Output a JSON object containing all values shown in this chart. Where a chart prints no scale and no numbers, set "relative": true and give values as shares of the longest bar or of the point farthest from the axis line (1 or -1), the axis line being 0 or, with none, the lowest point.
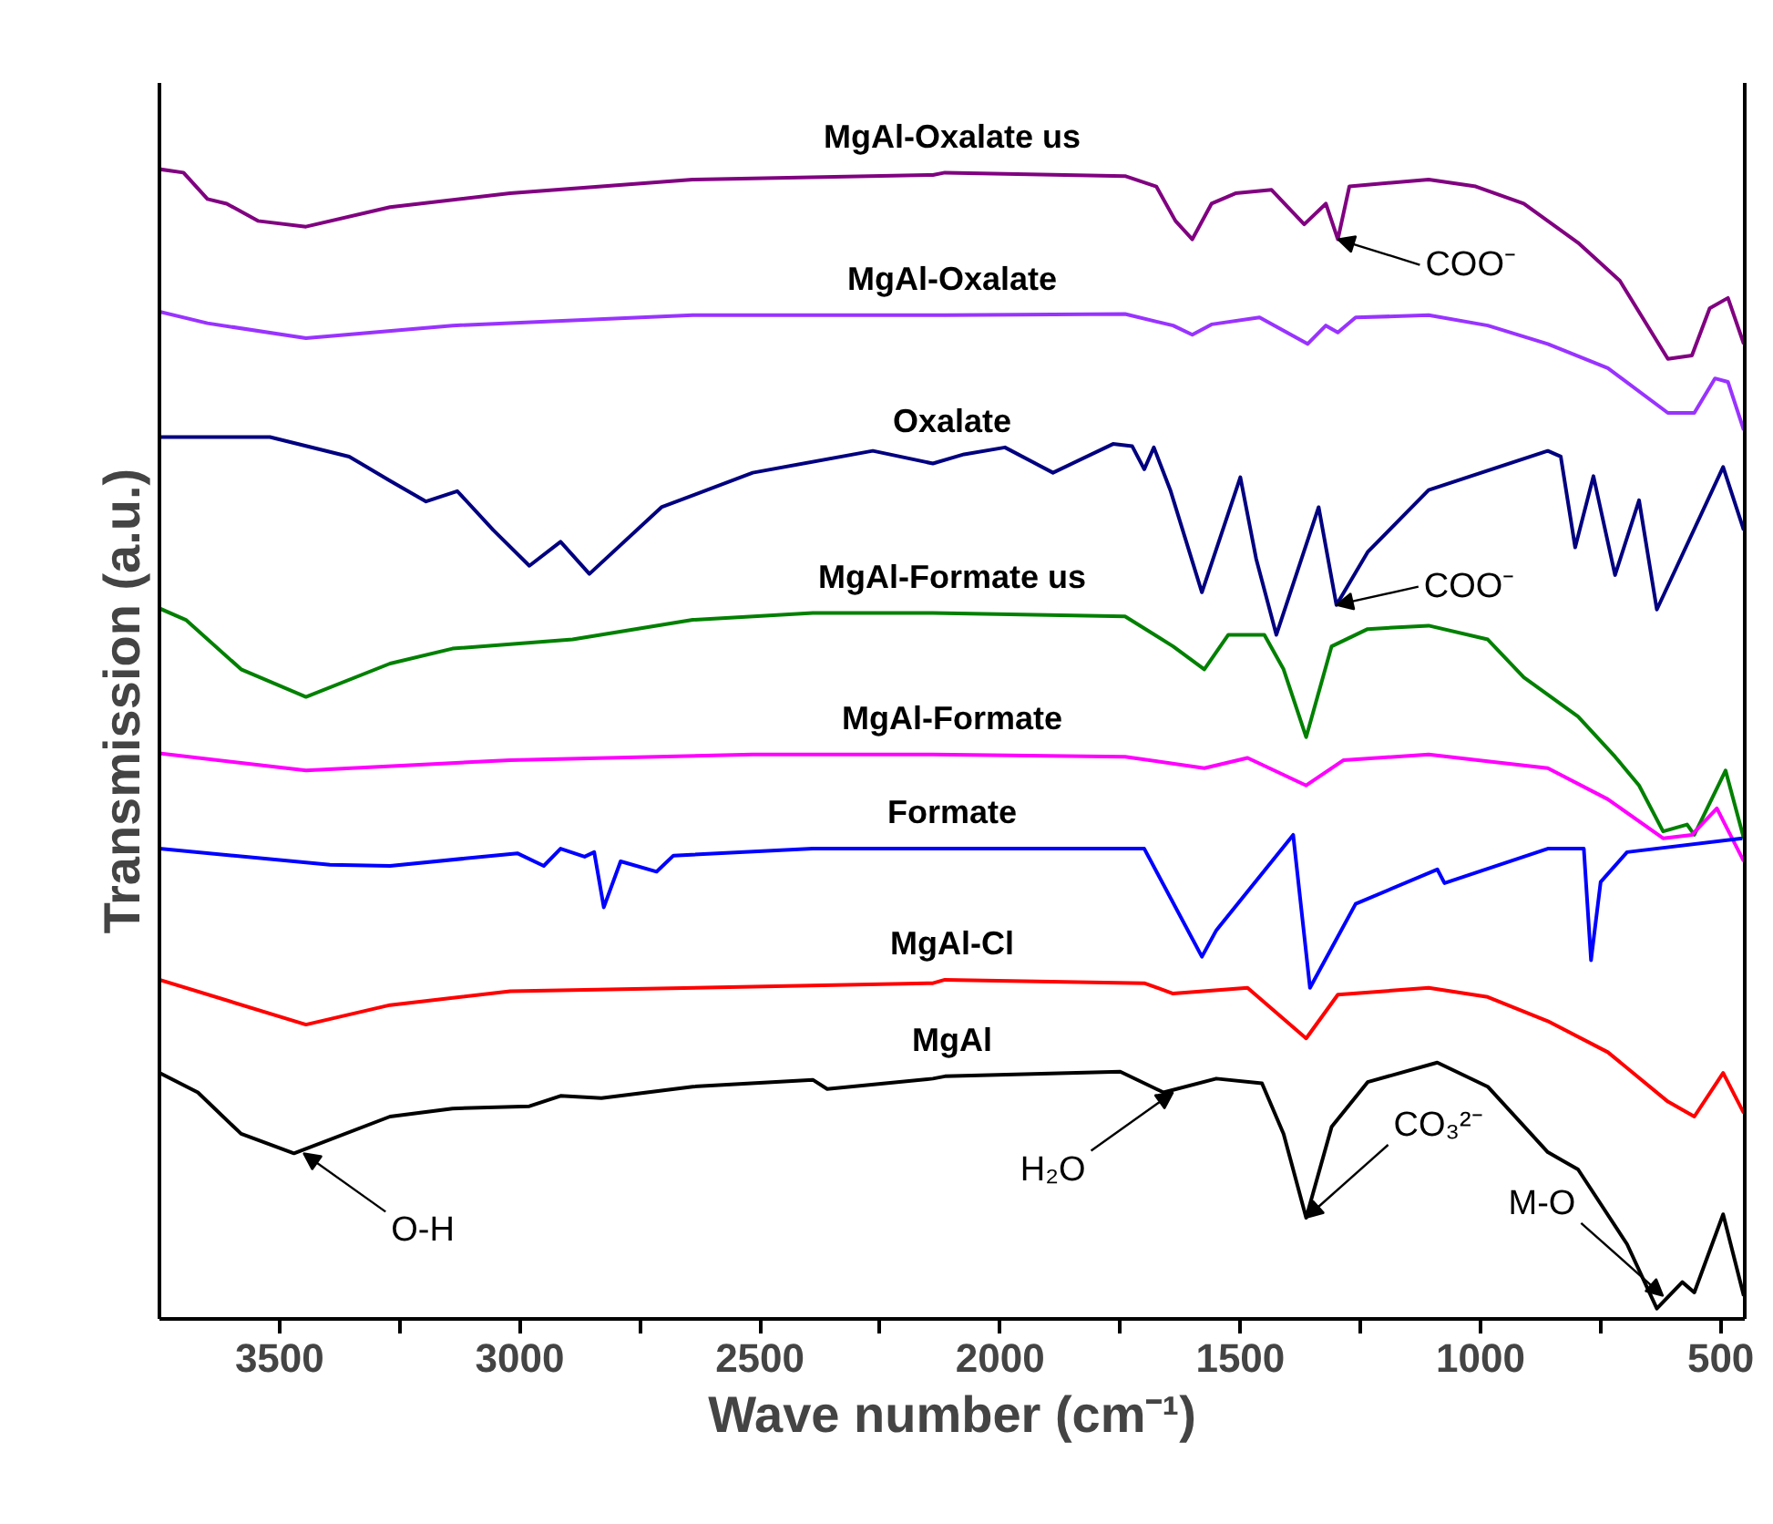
{
  "chart_data": {
    "type": "line",
    "relative": true,
    "xlabel": "Wave number (cm⁻¹)",
    "ylabel": "Transmission (a.u.)",
    "xlim": [
      3750,
      450
    ],
    "xticks": [
      {
        "value": 3250,
        "label": null
      },
      3500,
      3000,
      {
        "value": 2750,
        "label": null
      },
      2500,
      {
        "value": 2250,
        "label": null
      },
      2000,
      {
        "value": 1750,
        "label": null
      },
      1500,
      {
        "value": 1250,
        "label": null
      },
      1000,
      {
        "value": 750,
        "label": null
      },
      500
    ],
    "tick_labels": "x",
    "grid": false,
    "line_style": "solid",
    "series": [
      {
        "name": "MgAl-Oxalate us",
        "color": "#800080",
        "x": [
          3750,
          3700,
          3650,
          3610,
          3545,
          3445,
          3270,
          3020,
          2640,
          2140,
          2115,
          1740,
          1675,
          1635,
          1600,
          1560,
          1510,
          1435,
          1367,
          1322,
          1297,
          1273,
          1108,
          1010,
          910,
          797,
          710,
          610,
          560,
          523,
          485,
          452
        ],
        "values": [
          1.0,
          0.997,
          0.974,
          0.97,
          0.955,
          0.95,
          0.967,
          0.979,
          0.991,
          0.995,
          0.997,
          0.994,
          0.985,
          0.955,
          0.939,
          0.97,
          0.979,
          0.982,
          0.952,
          0.97,
          0.939,
          0.985,
          0.991,
          0.985,
          0.97,
          0.936,
          0.903,
          0.835,
          0.838,
          0.879,
          0.888,
          0.848
        ]
      },
      {
        "name": "MgAl-Oxalate",
        "color": "#9933ff",
        "x": [
          3750,
          3650,
          3445,
          3140,
          2640,
          2140,
          2115,
          1740,
          1640,
          1600,
          1560,
          1460,
          1360,
          1322,
          1297,
          1260,
          1108,
          985,
          860,
          735,
          610,
          555,
          512,
          485,
          452
        ],
        "values": [
          0.876,
          0.866,
          0.853,
          0.864,
          0.873,
          0.873,
          0.873,
          0.874,
          0.864,
          0.856,
          0.865,
          0.871,
          0.848,
          0.864,
          0.858,
          0.871,
          0.873,
          0.864,
          0.848,
          0.827,
          0.788,
          0.788,
          0.818,
          0.815,
          0.773
        ]
      },
      {
        "name": "Oxalate",
        "color": "#000080",
        "x": [
          3750,
          3520,
          3355,
          3270,
          3195,
          3130,
          3055,
          2980,
          2915,
          2855,
          2705,
          2515,
          2265,
          2140,
          2075,
          1990,
          1890,
          1765,
          1725,
          1700,
          1680,
          1645,
          1580,
          1500,
          1467,
          1425,
          1337,
          1300,
          1235,
          1108,
          860,
          833,
          803,
          765,
          720,
          670,
          633,
          495,
          452
        ],
        "values": [
          0.767,
          0.767,
          0.75,
          0.729,
          0.711,
          0.72,
          0.686,
          0.655,
          0.676,
          0.648,
          0.706,
          0.736,
          0.755,
          0.744,
          0.752,
          0.758,
          0.736,
          0.761,
          0.759,
          0.739,
          0.758,
          0.72,
          0.632,
          0.732,
          0.661,
          0.595,
          0.706,
          0.621,
          0.667,
          0.721,
          0.755,
          0.75,
          0.671,
          0.733,
          0.647,
          0.712,
          0.617,
          0.741,
          0.686
        ]
      },
      {
        "name": "MgAl-Formate us",
        "color": "#008000",
        "x": [
          3750,
          3695,
          3580,
          3445,
          3270,
          3140,
          2890,
          2640,
          2390,
          2140,
          1740,
          1640,
          1575,
          1525,
          1450,
          1410,
          1363,
          1310,
          1235,
          1108,
          985,
          910,
          797,
          720,
          670,
          620,
          570,
          555,
          490,
          452
        ],
        "values": [
          0.618,
          0.608,
          0.565,
          0.541,
          0.57,
          0.583,
          0.591,
          0.608,
          0.614,
          0.614,
          0.611,
          0.585,
          0.565,
          0.595,
          0.595,
          0.565,
          0.506,
          0.585,
          0.6,
          0.603,
          0.591,
          0.558,
          0.524,
          0.489,
          0.464,
          0.424,
          0.43,
          0.421,
          0.477,
          0.418
        ]
      },
      {
        "name": "MgAl-Formate",
        "color": "#ff00ff",
        "x": [
          3750,
          3445,
          3020,
          2515,
          2140,
          1740,
          1575,
          1485,
          1363,
          1285,
          1108,
          985,
          860,
          735,
          620,
          560,
          508,
          452
        ],
        "values": [
          0.492,
          0.477,
          0.486,
          0.491,
          0.491,
          0.489,
          0.479,
          0.488,
          0.464,
          0.486,
          0.491,
          0.485,
          0.479,
          0.452,
          0.418,
          0.421,
          0.444,
          0.398
        ]
      },
      {
        "name": "Formate",
        "color": "#0000ff",
        "x": [
          3750,
          3395,
          3270,
          3005,
          2950,
          2915,
          2865,
          2845,
          2825,
          2790,
          2715,
          2680,
          2390,
          2115,
          1700,
          1580,
          1550,
          1390,
          1355,
          1260,
          1090,
          1075,
          860,
          785,
          770,
          750,
          695,
          455
        ],
        "values": [
          0.409,
          0.395,
          0.394,
          0.405,
          0.394,
          0.409,
          0.402,
          0.406,
          0.358,
          0.398,
          0.389,
          0.403,
          0.409,
          0.409,
          0.409,
          0.315,
          0.338,
          0.421,
          0.288,
          0.361,
          0.391,
          0.379,
          0.409,
          0.409,
          0.312,
          0.38,
          0.406,
          0.418
        ]
      },
      {
        "name": "MgAl-Cl",
        "color": "#ff0000",
        "x": [
          3750,
          3445,
          3270,
          3020,
          2515,
          2140,
          2115,
          1700,
          1640,
          1485,
          1363,
          1297,
          1108,
          985,
          860,
          735,
          610,
          555,
          495,
          452
        ],
        "values": [
          0.295,
          0.256,
          0.273,
          0.285,
          0.289,
          0.292,
          0.295,
          0.292,
          0.283,
          0.288,
          0.244,
          0.282,
          0.288,
          0.28,
          0.259,
          0.232,
          0.189,
          0.176,
          0.214,
          0.179
        ]
      },
      {
        "name": "MgAl",
        "color": "#000000",
        "x": [
          3750,
          3670,
          3580,
          3470,
          3270,
          3140,
          2980,
          2915,
          2830,
          2640,
          2390,
          2360,
          2140,
          2115,
          1750,
          1660,
          1550,
          1455,
          1410,
          1363,
          1310,
          1235,
          1090,
          985,
          860,
          797,
          695,
          633,
          580,
          555,
          495,
          452
        ],
        "values": [
          0.214,
          0.197,
          0.161,
          0.144,
          0.176,
          0.183,
          0.185,
          0.194,
          0.192,
          0.202,
          0.208,
          0.2,
          0.209,
          0.211,
          0.215,
          0.197,
          0.209,
          0.205,
          0.161,
          0.088,
          0.167,
          0.206,
          0.223,
          0.202,
          0.145,
          0.13,
          0.065,
          0.009,
          0.032,
          0.023,
          0.091,
          0.02
        ]
      }
    ],
    "annotations": [
      {
        "text": "COO⁻",
        "x": 1297,
        "y": 0.939
      },
      {
        "text": "COO⁻",
        "x": 1300,
        "y": 0.621
      },
      {
        "text": "O-H",
        "x": 3450,
        "y": 0.144
      },
      {
        "text": "H₂O",
        "x": 1640,
        "y": 0.197
      },
      {
        "text": "CO₃²⁻",
        "x": 1363,
        "y": 0.088
      },
      {
        "text": "M-O",
        "x": 620,
        "y": 0.02
      }
    ]
  }
}
